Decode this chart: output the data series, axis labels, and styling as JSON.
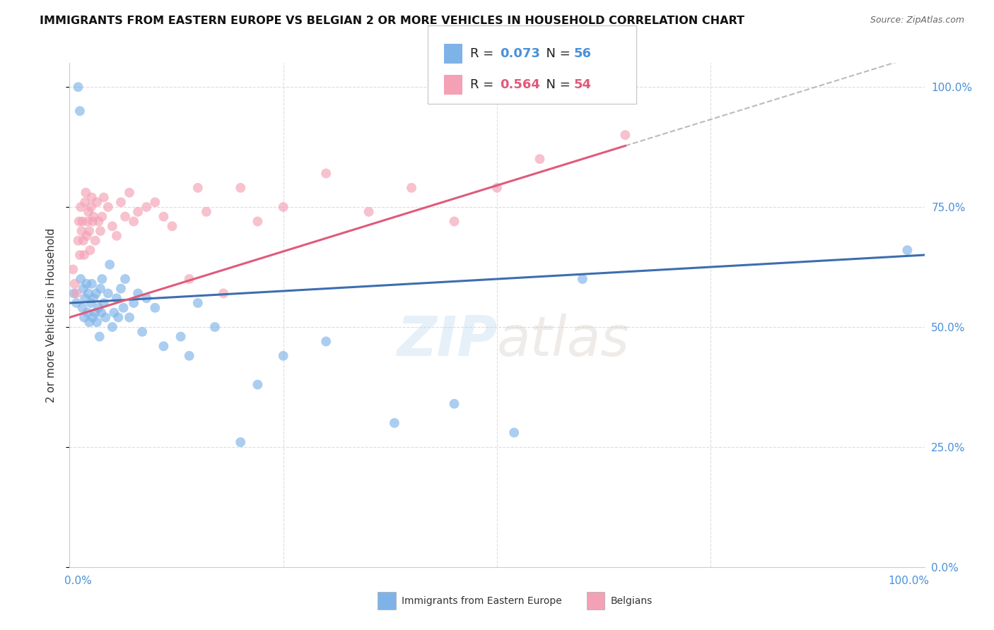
{
  "title": "IMMIGRANTS FROM EASTERN EUROPE VS BELGIAN 2 OR MORE VEHICLES IN HOUSEHOLD CORRELATION CHART",
  "source": "Source: ZipAtlas.com",
  "ylabel": "2 or more Vehicles in Household",
  "legend_blue_label": "Immigrants from Eastern Europe",
  "legend_pink_label": "Belgians",
  "ytick_labels": [
    "0.0%",
    "25.0%",
    "50.0%",
    "75.0%",
    "100.0%"
  ],
  "ytick_values": [
    0,
    25,
    50,
    75,
    100
  ],
  "xlim": [
    0,
    100
  ],
  "ylim": [
    0,
    105
  ],
  "blue_color": "#7EB3E8",
  "pink_color": "#F4A0B5",
  "blue_line_color": "#3D6EAF",
  "pink_line_color": "#E05A7A",
  "blue_r": 0.073,
  "pink_r": 0.564,
  "blue_points_x": [
    0.5,
    0.8,
    1.0,
    1.2,
    1.3,
    1.5,
    1.6,
    1.7,
    1.8,
    2.0,
    2.1,
    2.2,
    2.3,
    2.5,
    2.6,
    2.7,
    2.8,
    3.0,
    3.1,
    3.2,
    3.4,
    3.5,
    3.6,
    3.7,
    3.8,
    4.0,
    4.2,
    4.5,
    4.7,
    5.0,
    5.2,
    5.5,
    5.7,
    6.0,
    6.3,
    6.5,
    7.0,
    7.5,
    8.0,
    8.5,
    9.0,
    10.0,
    11.0,
    13.0,
    14.0,
    15.0,
    17.0,
    20.0,
    22.0,
    25.0,
    30.0,
    38.0,
    45.0,
    52.0,
    60.0,
    98.0
  ],
  "blue_points_y": [
    57,
    55,
    100,
    95,
    60,
    54,
    58,
    52,
    56,
    59,
    53,
    57,
    51,
    55,
    59,
    52,
    56,
    53,
    57,
    51,
    54,
    48,
    58,
    53,
    60,
    55,
    52,
    57,
    63,
    50,
    53,
    56,
    52,
    58,
    54,
    60,
    52,
    55,
    57,
    49,
    56,
    54,
    46,
    48,
    44,
    55,
    50,
    26,
    38,
    44,
    47,
    30,
    34,
    28,
    60,
    66
  ],
  "pink_points_x": [
    0.4,
    0.6,
    0.8,
    1.0,
    1.1,
    1.2,
    1.3,
    1.4,
    1.5,
    1.6,
    1.7,
    1.8,
    1.9,
    2.0,
    2.1,
    2.2,
    2.3,
    2.4,
    2.5,
    2.6,
    2.7,
    2.8,
    3.0,
    3.2,
    3.4,
    3.6,
    3.8,
    4.0,
    4.5,
    5.0,
    5.5,
    6.0,
    6.5,
    7.0,
    7.5,
    8.0,
    9.0,
    10.0,
    11.0,
    12.0,
    14.0,
    15.0,
    16.0,
    18.0,
    20.0,
    22.0,
    25.0,
    30.0,
    35.0,
    40.0,
    45.0,
    50.0,
    55.0,
    65.0
  ],
  "pink_points_y": [
    62,
    59,
    57,
    68,
    72,
    65,
    75,
    70,
    72,
    68,
    65,
    76,
    78,
    69,
    72,
    74,
    70,
    66,
    75,
    77,
    72,
    73,
    68,
    76,
    72,
    70,
    73,
    77,
    75,
    71,
    69,
    76,
    73,
    78,
    72,
    74,
    75,
    76,
    73,
    71,
    60,
    79,
    74,
    57,
    79,
    72,
    75,
    82,
    74,
    79,
    72,
    79,
    85,
    90
  ],
  "watermark_part1": "ZIP",
  "watermark_part2": "atlas",
  "background_color": "#FFFFFF",
  "grid_color": "#DDDDDD",
  "dashed_line_color": "#AAAAAA"
}
